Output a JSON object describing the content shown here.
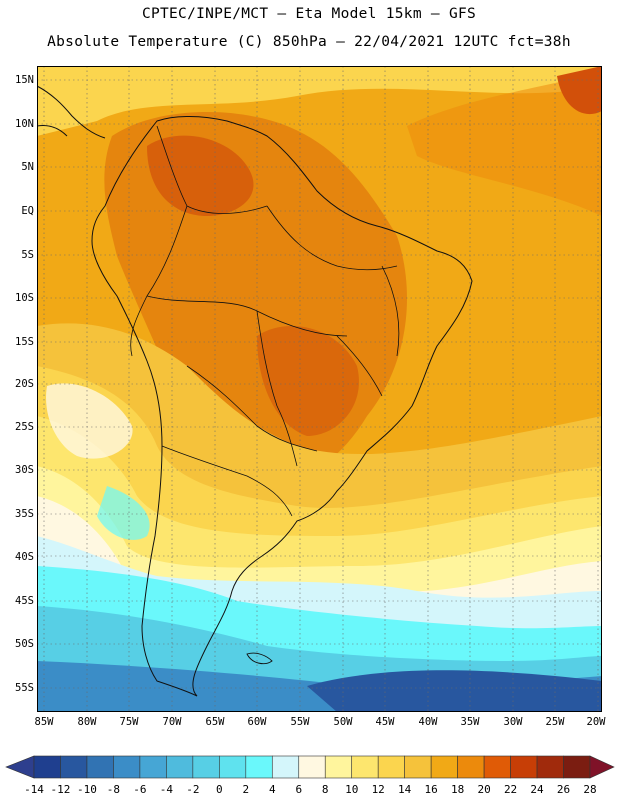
{
  "header": {
    "title_line1": "CPTEC/INPE/MCT –  Eta Model 15km – GFS",
    "title_line2": "Absolute Temperature (C) 850hPa – 22/04/2021 12UTC fct=38h"
  },
  "map": {
    "region": "South America",
    "field": "850hPa absolute temperature",
    "lat_labels": [
      "15N",
      "10N",
      "5N",
      "EQ",
      "5S",
      "10S",
      "15S",
      "20S",
      "25S",
      "30S",
      "35S",
      "40S",
      "45S",
      "50S",
      "55S"
    ],
    "lon_labels": [
      "85W",
      "80W",
      "75W",
      "70W",
      "65W",
      "60W",
      "55W",
      "50W",
      "45W",
      "40W",
      "35W",
      "30W",
      "25W",
      "20W"
    ]
  },
  "colorbar": {
    "labels": [
      "-14",
      "-12",
      "-10",
      "-8",
      "-6",
      "-4",
      "-2",
      "0",
      "2",
      "4",
      "6",
      "8",
      "10",
      "12",
      "14",
      "16",
      "18",
      "20",
      "22",
      "24",
      "26",
      "28"
    ],
    "colors": [
      "#1f3f8f",
      "#28579f",
      "#3173b3",
      "#3b8dc7",
      "#46a6d5",
      "#4fbbdd",
      "#57cfe5",
      "#5fe2ee",
      "#6af8fb",
      "#d4f6fb",
      "#fff8e1",
      "#fff59d",
      "#fde66e",
      "#fbd54e",
      "#f5c23b",
      "#f1a916",
      "#ec8a0c",
      "#e05b06",
      "#c73e06",
      "#a02a0c",
      "#7b1d11"
    ],
    "end_low": "#2e3f8e",
    "end_high": "#7f1228"
  },
  "colors": {
    "warm_base": "#f1a916",
    "hot": "#e07a0c",
    "very_hot": "#d2500a",
    "warm_light": "#fbd54e",
    "mild": "#fde66e",
    "pale": "#fff59d",
    "cream": "#fff8e1",
    "cool_pale": "#d4f6fb",
    "cyan": "#6af8fb",
    "cyan2": "#57cfe5",
    "blue_mid": "#3b8dc7",
    "blue_deep": "#28579f"
  }
}
